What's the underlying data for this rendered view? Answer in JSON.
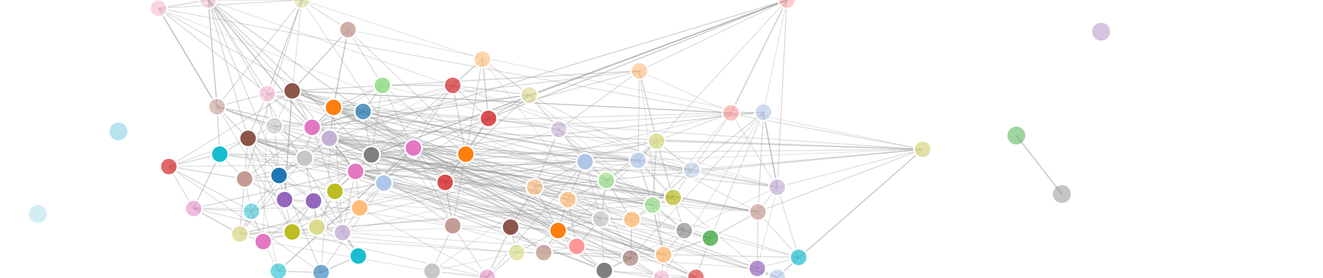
{
  "graph": {
    "type": "force-directed-network",
    "node_color_palette": [
      "#1f77b4",
      "#aec7e8",
      "#ff7f0e",
      "#ffbb78",
      "#2ca02c",
      "#98df8a",
      "#d62728",
      "#ff9896",
      "#9467bd",
      "#c5b0d5",
      "#8c564b",
      "#c49c94",
      "#e377c2",
      "#f7b6d2",
      "#7f7f7f",
      "#c7c7c7",
      "#bcbd22",
      "#dbdb8d",
      "#17becf",
      "#9edae5"
    ],
    "link_color": "#9a9a9a",
    "node_stroke_color": "#ffffff",
    "isolated_nodes": [
      {
        "id": "iso-1",
        "color": "#9edae5"
      },
      {
        "id": "iso-2",
        "color": "#9edae5"
      },
      {
        "id": "iso-3",
        "color": "#c5b0d5"
      }
    ],
    "separate_component": [
      {
        "id": "pair-a",
        "color": "#2ca02c"
      },
      {
        "id": "pair-b",
        "color": "#7f7f7f"
      }
    ]
  }
}
